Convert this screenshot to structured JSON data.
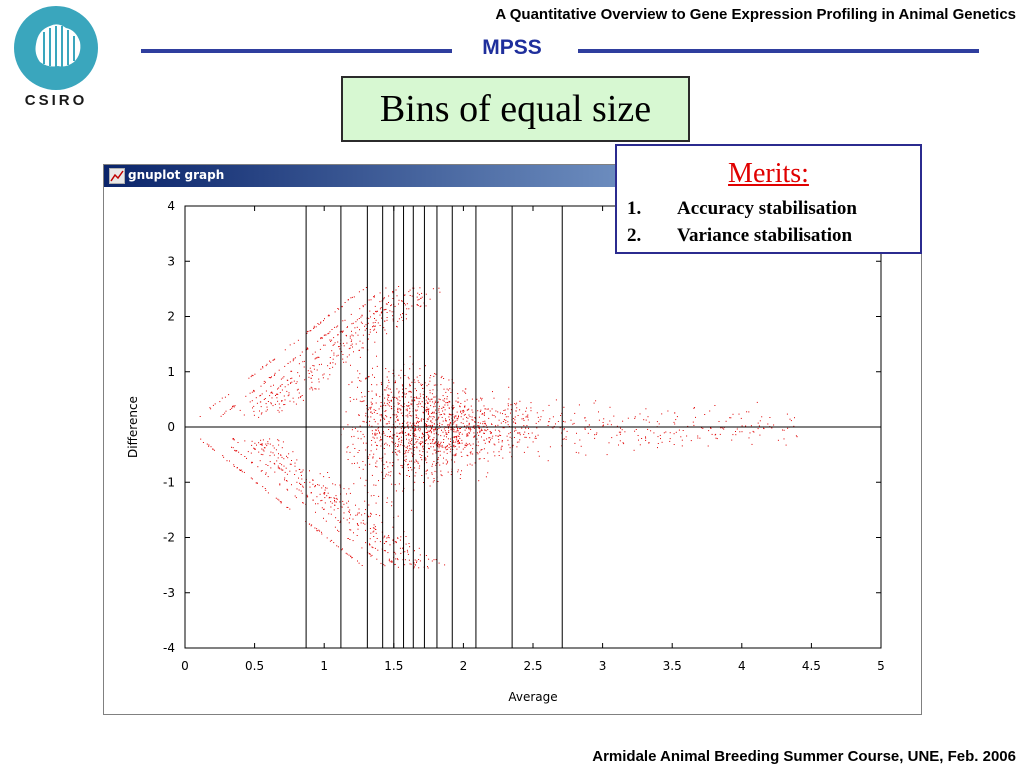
{
  "header": {
    "logo_text": "CSIRO",
    "course_title": "A Quantitative Overview to Gene Expression Profiling in Animal Genetics",
    "section": "MPSS",
    "accent_color": "#1f2f9c"
  },
  "slide_title": "Bins of equal size",
  "window": {
    "title": "gnuplot graph",
    "icon": "gnuplot-graph-icon"
  },
  "merits": {
    "title": "Merits:",
    "items": [
      {
        "num": "1.",
        "text": "Accuracy stabilisation"
      },
      {
        "num": "2.",
        "text": "Variance stabilisation"
      }
    ]
  },
  "footer": "Armidale Animal Breeding Summer Course, UNE, Feb. 2006",
  "chart_data": {
    "type": "scatter",
    "xlabel": "Average",
    "ylabel": "Difference",
    "xlim": [
      0,
      5
    ],
    "ylim": [
      -4,
      4
    ],
    "x_ticks": [
      "0",
      "0.5",
      "1",
      "1.5",
      "2",
      "2.5",
      "3",
      "3.5",
      "4",
      "4.5",
      "5"
    ],
    "y_ticks": [
      "4",
      "3",
      "2",
      "1",
      "0",
      "-1",
      "-2",
      "-3",
      "-4"
    ],
    "bin_boundaries": [
      0.87,
      1.12,
      1.31,
      1.42,
      1.5,
      1.57,
      1.64,
      1.72,
      1.81,
      1.92,
      2.09,
      2.35,
      2.71
    ],
    "reference_line_y": 0,
    "point_color": "#e00000",
    "points_description_note": null
  }
}
